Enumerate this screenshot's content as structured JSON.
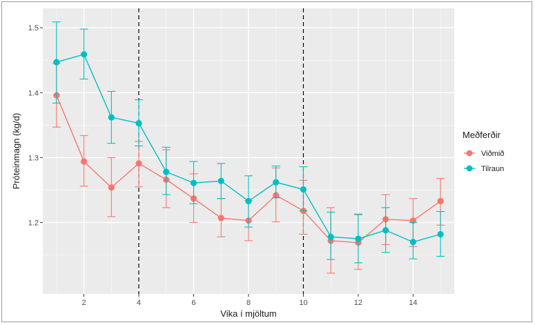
{
  "chart_data": {
    "type": "line",
    "xlabel": "Vika í mjöltum",
    "ylabel": "Próteinmagn (kg/d)",
    "xlim": [
      0.5,
      15.5
    ],
    "ylim": [
      1.09,
      1.53
    ],
    "x_ticks": [
      2,
      4,
      6,
      8,
      10,
      12,
      14
    ],
    "y_ticks": [
      1.2,
      1.3,
      1.4,
      1.5
    ],
    "y_tick_labels": [
      "1.2",
      "1.3",
      "1.4",
      "1.5"
    ],
    "vlines": [
      4,
      10
    ],
    "grid": true,
    "legend": {
      "title": "Meðferðir",
      "placement": "right"
    },
    "x": [
      1,
      2,
      3,
      4,
      5,
      6,
      7,
      8,
      9,
      10,
      11,
      12,
      13,
      14,
      15
    ],
    "series": [
      {
        "name": "Viðmið",
        "color": "#F8766D",
        "values": [
          1.396,
          1.294,
          1.254,
          1.291,
          1.266,
          1.237,
          1.207,
          1.203,
          1.242,
          1.218,
          1.172,
          1.169,
          1.205,
          1.203,
          1.233
        ],
        "err_low": [
          1.347,
          1.256,
          1.209,
          1.255,
          1.223,
          1.2,
          1.178,
          1.172,
          1.201,
          1.182,
          1.122,
          1.128,
          1.166,
          1.163,
          1.196
        ],
        "err_high": [
          1.445,
          1.334,
          1.3,
          1.325,
          1.312,
          1.275,
          1.237,
          1.234,
          1.284,
          1.265,
          1.223,
          1.212,
          1.243,
          1.237,
          1.268
        ]
      },
      {
        "name": "Tilraun",
        "color": "#00BFC4",
        "values": [
          1.447,
          1.459,
          1.362,
          1.353,
          1.278,
          1.261,
          1.264,
          1.233,
          1.262,
          1.251,
          1.178,
          1.175,
          1.188,
          1.17,
          1.182
        ],
        "err_low": [
          1.384,
          1.421,
          1.322,
          1.318,
          1.243,
          1.229,
          1.237,
          1.193,
          1.238,
          1.218,
          1.143,
          1.138,
          1.154,
          1.144,
          1.148
        ],
        "err_high": [
          1.509,
          1.498,
          1.402,
          1.389,
          1.316,
          1.294,
          1.291,
          1.272,
          1.287,
          1.286,
          1.216,
          1.213,
          1.223,
          1.2,
          1.217
        ]
      }
    ]
  }
}
